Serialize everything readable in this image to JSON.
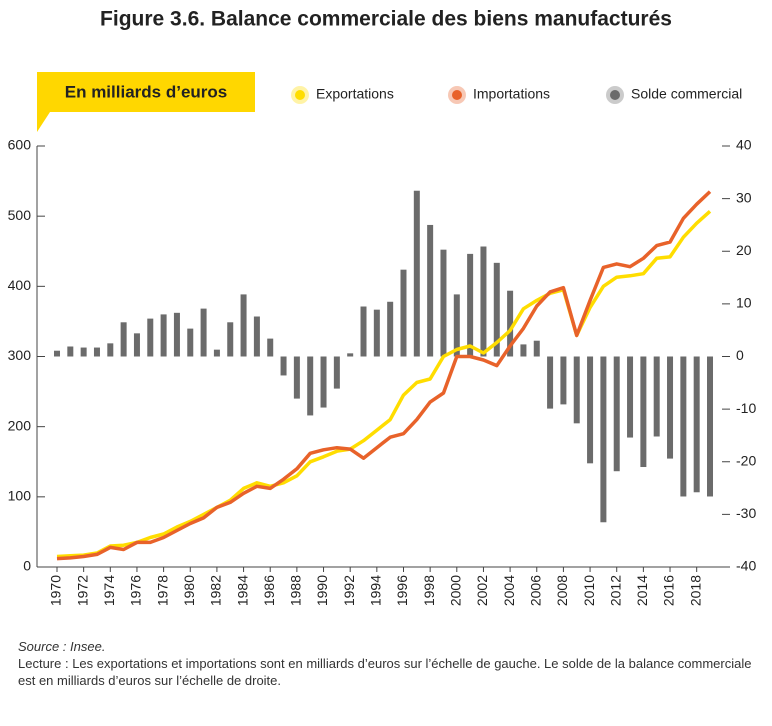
{
  "chart_data": {
    "type": "line-bar",
    "title": "Figure 3.6. Balance commerciale des biens manufacturés",
    "ylabel": "En milliards d’euros",
    "x": [
      1970,
      1971,
      1972,
      1973,
      1974,
      1975,
      1976,
      1977,
      1978,
      1979,
      1980,
      1981,
      1982,
      1983,
      1984,
      1985,
      1986,
      1987,
      1988,
      1989,
      1990,
      1991,
      1992,
      1993,
      1994,
      1995,
      1996,
      1997,
      1998,
      1999,
      2000,
      2001,
      2002,
      2003,
      2004,
      2005,
      2006,
      2007,
      2008,
      2009,
      2010,
      2011,
      2012,
      2013,
      2014,
      2015,
      2016,
      2017,
      2018,
      2019
    ],
    "series": [
      {
        "name": "Exportations",
        "color": "#ffdd00",
        "kind": "line",
        "values": [
          15,
          16,
          17,
          20,
          30,
          31,
          35,
          42,
          47,
          57,
          65,
          75,
          85,
          95,
          112,
          120,
          115,
          120,
          130,
          150,
          157,
          165,
          168,
          180,
          195,
          210,
          245,
          263,
          268,
          300,
          310,
          315,
          305,
          320,
          337,
          368,
          380,
          390,
          395,
          330,
          370,
          400,
          413,
          415,
          418,
          440,
          442,
          470,
          490,
          507
        ]
      },
      {
        "name": "Importations",
        "color": "#e8622a",
        "kind": "line",
        "values": [
          12,
          13,
          15,
          18,
          28,
          25,
          35,
          35,
          42,
          52,
          62,
          70,
          85,
          92,
          105,
          115,
          112,
          125,
          140,
          162,
          167,
          170,
          168,
          155,
          170,
          185,
          190,
          210,
          235,
          248,
          300,
          300,
          295,
          287,
          315,
          340,
          372,
          392,
          398,
          330,
          380,
          427,
          432,
          428,
          440,
          458,
          463,
          497,
          517,
          535
        ]
      },
      {
        "name": "Solde commercial",
        "color": "#6b6b6b",
        "kind": "bar",
        "axis": "y2",
        "values": [
          1.1,
          1.9,
          1.7,
          1.7,
          2.5,
          6.5,
          4.4,
          7.2,
          8,
          8.3,
          5.3,
          9.1,
          1.3,
          6.5,
          11.8,
          7.6,
          3.4,
          -3.6,
          -8,
          -11.2,
          -9.7,
          -6.1,
          0.6,
          9.5,
          8.9,
          10.4,
          16.5,
          31.5,
          25,
          20.3,
          11.8,
          19.5,
          20.9,
          17.8,
          12.5,
          2.3,
          3,
          -9.9,
          -9.1,
          -12.7,
          -20.3,
          -31.5,
          -21.8,
          -15.4,
          -21,
          -15.2,
          -19.4,
          -26.6,
          -25.8,
          -26.6
        ]
      }
    ],
    "xlim": [
      1968.5,
      2020.5
    ],
    "xticks": [
      1970,
      1972,
      1974,
      1976,
      1978,
      1980,
      1982,
      1984,
      1986,
      1988,
      1990,
      1992,
      1994,
      1996,
      1998,
      2000,
      2002,
      2004,
      2006,
      2008,
      2010,
      2012,
      2014,
      2016,
      2018
    ],
    "ylim": [
      0,
      600
    ],
    "yticks": [
      0,
      100,
      200,
      300,
      400,
      500,
      600
    ],
    "y2lim": [
      -40,
      40
    ],
    "y2ticks": [
      -40,
      -30,
      -20,
      -10,
      0,
      10,
      20,
      30,
      40
    ],
    "source": "Source : Insee.",
    "note": "Lecture : Les exportations et importations sont en milliards d’euros sur l’échelle de gauche. Le solde de la balance commerciale est en milliards d’euros sur l’échelle de droite."
  }
}
